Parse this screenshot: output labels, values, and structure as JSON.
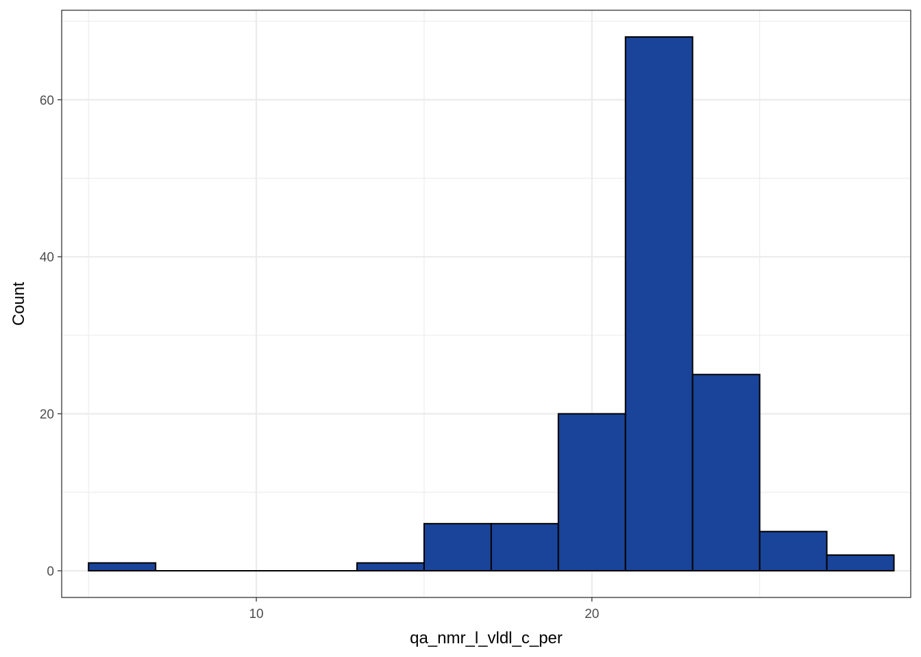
{
  "chart_data": {
    "type": "bar",
    "title": "",
    "xlabel": "qa_nmr_l_vldl_c_per",
    "ylabel": "Count",
    "xlim": [
      4.2,
      29.5
    ],
    "ylim": [
      -3.4,
      71.4
    ],
    "x_ticks": [
      10,
      20
    ],
    "y_ticks": [
      0,
      20,
      40,
      60
    ],
    "grid": true,
    "bins": [
      {
        "x0": 5.0,
        "x1": 7.0,
        "count": 1
      },
      {
        "x0": 7.0,
        "x1": 9.0,
        "count": 0
      },
      {
        "x0": 9.0,
        "x1": 11.0,
        "count": 0
      },
      {
        "x0": 11.0,
        "x1": 13.0,
        "count": 0
      },
      {
        "x0": 13.0,
        "x1": 15.0,
        "count": 1
      },
      {
        "x0": 15.0,
        "x1": 17.0,
        "count": 6
      },
      {
        "x0": 17.0,
        "x1": 19.0,
        "count": 6
      },
      {
        "x0": 19.0,
        "x1": 21.0,
        "count": 20
      },
      {
        "x0": 21.0,
        "x1": 23.0,
        "count": 68
      },
      {
        "x0": 23.0,
        "x1": 25.0,
        "count": 25
      },
      {
        "x0": 25.0,
        "x1": 27.0,
        "count": 5
      },
      {
        "x0": 27.0,
        "x1": 29.0,
        "count": 2
      }
    ],
    "colors": {
      "fill": "#1a4499",
      "outline": "#000000",
      "grid": "#ebebeb",
      "border": "#333333"
    }
  }
}
